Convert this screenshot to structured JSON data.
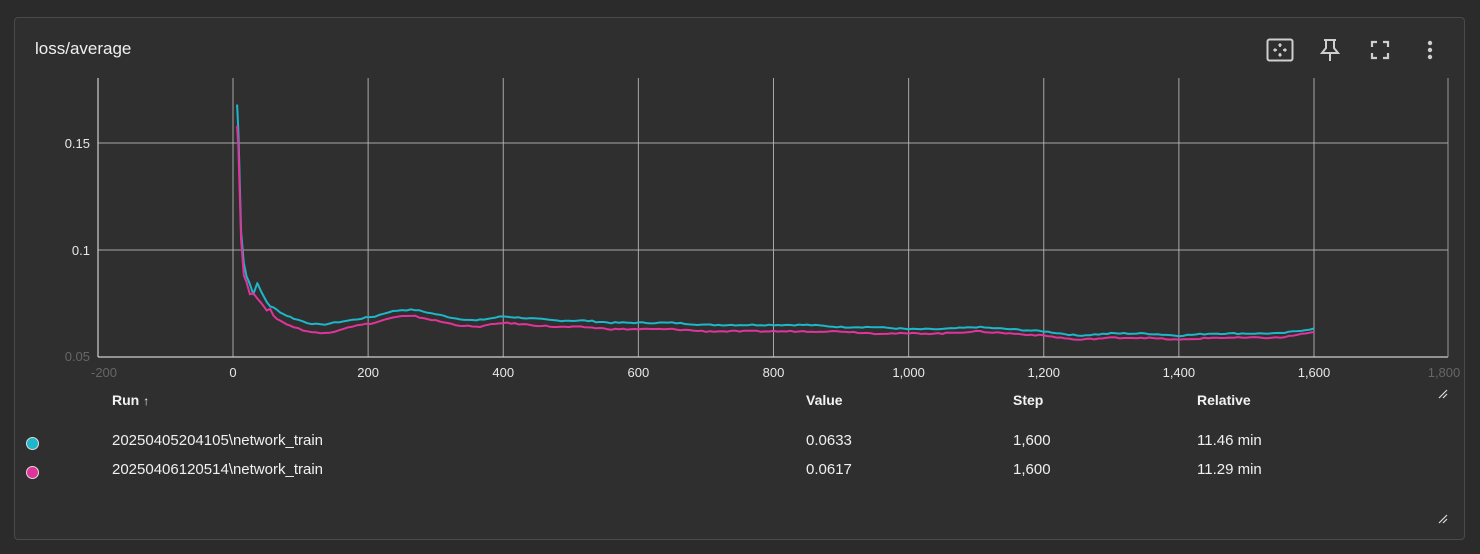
{
  "card": {
    "title": "loss/average",
    "toolbar": [
      {
        "name": "fit-domain-icon"
      },
      {
        "name": "pin-icon"
      },
      {
        "name": "fullscreen-icon"
      },
      {
        "name": "more-vert-icon"
      }
    ]
  },
  "chart_data": {
    "type": "line",
    "title": "loss/average",
    "xlabel": "",
    "ylabel": "",
    "xlim": [
      -200,
      1800
    ],
    "ylim": [
      0.05,
      0.18
    ],
    "x_ticks": [
      "-200",
      "0",
      "200",
      "400",
      "600",
      "800",
      "1,000",
      "1,200",
      "1,400",
      "1,600",
      "1,800"
    ],
    "y_ticks": [
      "0.05",
      "0.1",
      "0.15"
    ],
    "grid": true,
    "series": [
      {
        "name": "20250405204105\\network_train",
        "color": "#1fb6c9",
        "x": [
          6,
          8,
          12,
          16,
          20,
          25,
          30,
          36,
          42,
          50,
          60,
          75,
          90,
          110,
          130,
          150,
          170,
          190,
          210,
          230,
          250,
          270,
          300,
          330,
          360,
          400,
          440,
          480,
          520,
          560,
          600,
          650,
          700,
          750,
          800,
          850,
          900,
          950,
          1000,
          1050,
          1100,
          1150,
          1200,
          1250,
          1300,
          1350,
          1400,
          1450,
          1500,
          1550,
          1600
        ],
        "y": [
          0.168,
          0.155,
          0.11,
          0.095,
          0.088,
          0.084,
          0.081,
          0.083,
          0.08,
          0.076,
          0.073,
          0.07,
          0.068,
          0.066,
          0.065,
          0.066,
          0.067,
          0.068,
          0.069,
          0.071,
          0.072,
          0.072,
          0.07,
          0.068,
          0.067,
          0.069,
          0.068,
          0.067,
          0.067,
          0.066,
          0.066,
          0.066,
          0.065,
          0.065,
          0.065,
          0.065,
          0.064,
          0.064,
          0.063,
          0.063,
          0.064,
          0.063,
          0.062,
          0.06,
          0.061,
          0.061,
          0.06,
          0.061,
          0.061,
          0.061,
          0.0633
        ]
      },
      {
        "name": "20250406120514\\network_train",
        "color": "#e0349a",
        "x": [
          6,
          8,
          12,
          16,
          20,
          25,
          30,
          36,
          42,
          50,
          60,
          75,
          90,
          110,
          130,
          150,
          170,
          190,
          210,
          230,
          250,
          270,
          300,
          330,
          360,
          400,
          440,
          480,
          520,
          560,
          600,
          650,
          700,
          750,
          800,
          850,
          900,
          950,
          1000,
          1050,
          1100,
          1150,
          1200,
          1250,
          1300,
          1350,
          1400,
          1450,
          1500,
          1550,
          1600
        ],
        "y": [
          0.16,
          0.148,
          0.105,
          0.09,
          0.084,
          0.08,
          0.078,
          0.079,
          0.077,
          0.073,
          0.069,
          0.066,
          0.064,
          0.062,
          0.061,
          0.062,
          0.064,
          0.065,
          0.066,
          0.068,
          0.069,
          0.069,
          0.067,
          0.065,
          0.064,
          0.066,
          0.065,
          0.064,
          0.064,
          0.063,
          0.063,
          0.063,
          0.062,
          0.062,
          0.062,
          0.062,
          0.062,
          0.061,
          0.061,
          0.061,
          0.062,
          0.061,
          0.06,
          0.058,
          0.059,
          0.059,
          0.058,
          0.059,
          0.059,
          0.059,
          0.0617
        ]
      }
    ]
  },
  "legend": {
    "headers": {
      "run": "Run",
      "sort_arrow": "↑",
      "value": "Value",
      "step": "Step",
      "relative": "Relative"
    },
    "rows": [
      {
        "run": "20250405204105\\network_train",
        "value": "0.0633",
        "step": "1,600",
        "relative": "11.46 min",
        "color": "#1fb6c9"
      },
      {
        "run": "20250406120514\\network_train",
        "value": "0.0617",
        "step": "1,600",
        "relative": "11.29 min",
        "color": "#e0349a"
      }
    ]
  }
}
